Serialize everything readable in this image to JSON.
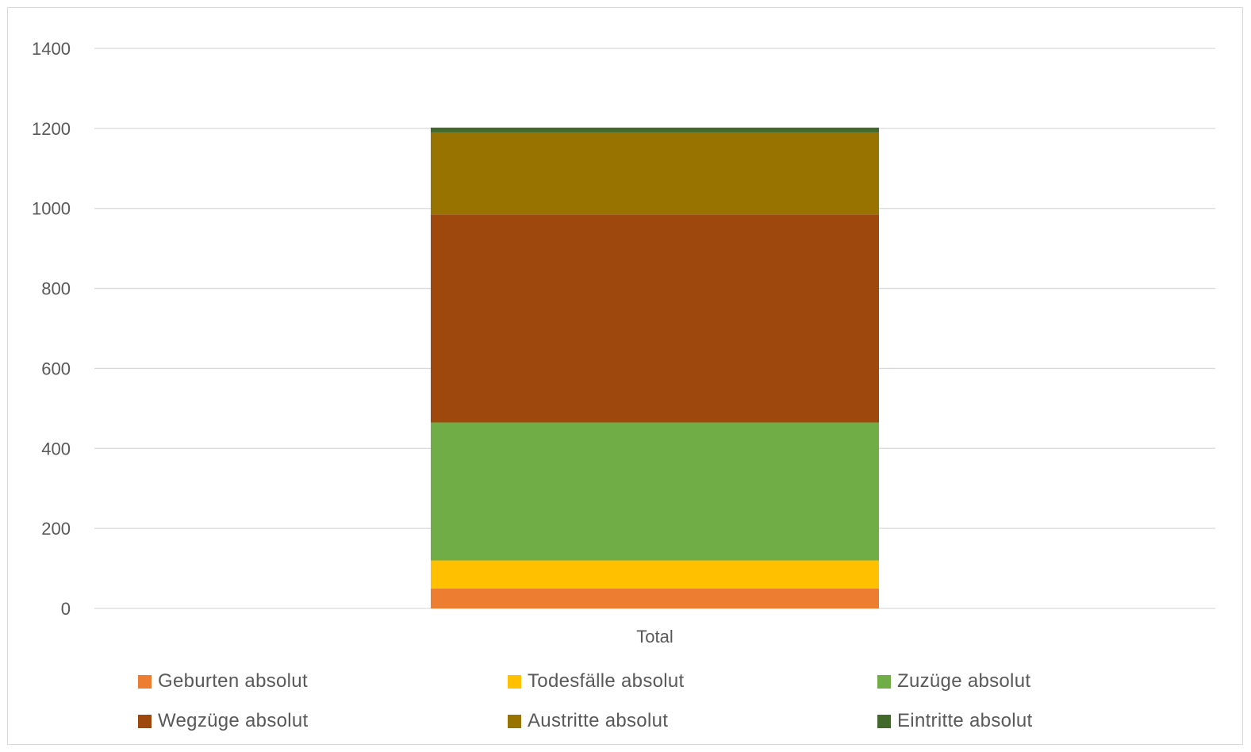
{
  "chart_data": {
    "type": "bar",
    "stacked": true,
    "categories": [
      "Total"
    ],
    "ylim": [
      0,
      1400
    ],
    "yticks": [
      0,
      200,
      400,
      600,
      800,
      1000,
      1200,
      1400
    ],
    "grid": true,
    "legend_position": "bottom",
    "series": [
      {
        "name": "Geburten absolut",
        "values": [
          50
        ],
        "color": "#ED7D31"
      },
      {
        "name": "Todesfälle absolut",
        "values": [
          70
        ],
        "color": "#FFC000"
      },
      {
        "name": "Zuzüge absolut",
        "values": [
          345
        ],
        "color": "#70AD47"
      },
      {
        "name": "Wegzüge absolut",
        "values": [
          520
        ],
        "color": "#9E480E"
      },
      {
        "name": "Austritte absolut",
        "values": [
          205
        ],
        "color": "#997300"
      },
      {
        "name": "Eintritte absolut",
        "values": [
          12
        ],
        "color": "#43682B"
      }
    ]
  }
}
